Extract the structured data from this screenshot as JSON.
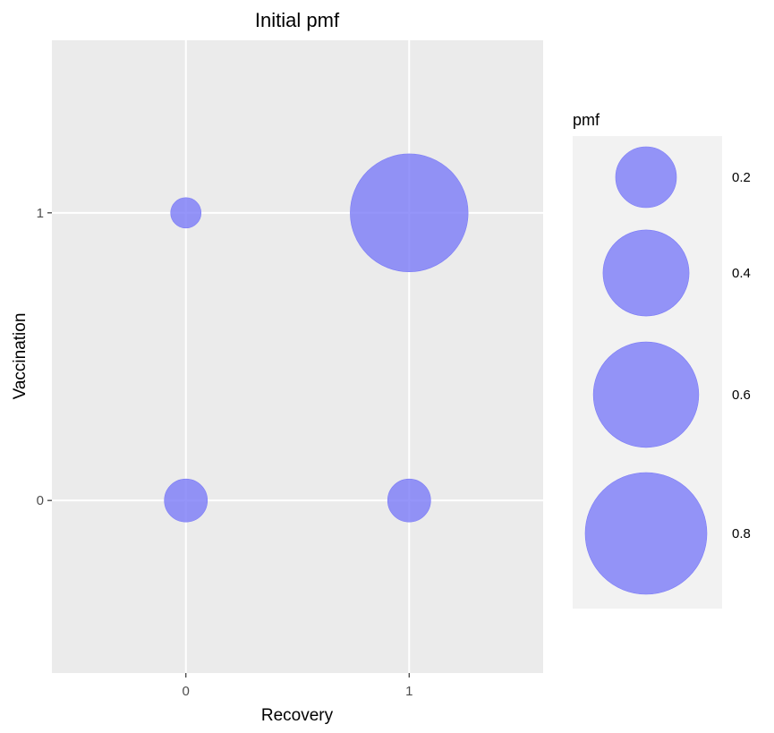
{
  "chart_data": {
    "type": "scatter",
    "title": "Initial pmf",
    "xlabel": "Recovery",
    "ylabel": "Vaccination",
    "x_ticks": [
      "0",
      "1"
    ],
    "y_ticks": [
      "0",
      "1"
    ],
    "xlim": [
      -0.6,
      1.6
    ],
    "ylim": [
      -0.6,
      1.6
    ],
    "grid": true,
    "size_variable": "pmf",
    "points": [
      {
        "x": 0,
        "y": 0,
        "pmf": 0.1
      },
      {
        "x": 1,
        "y": 0,
        "pmf": 0.1
      },
      {
        "x": 0,
        "y": 1,
        "pmf": 0.05
      },
      {
        "x": 1,
        "y": 1,
        "pmf": 0.75
      }
    ],
    "legend": {
      "title": "pmf",
      "position": "right",
      "entries": [
        {
          "value": 0.2,
          "label": "0.2"
        },
        {
          "value": 0.4,
          "label": "0.4"
        },
        {
          "value": 0.6,
          "label": "0.6"
        },
        {
          "value": 0.8,
          "label": "0.8"
        }
      ]
    },
    "colors": {
      "point_fill": "#7b7bf7",
      "point_opacity": 0.8,
      "panel_background": "#ebebeb",
      "grid_line": "#ffffff",
      "legend_key_background": "#f2f2f2"
    }
  }
}
